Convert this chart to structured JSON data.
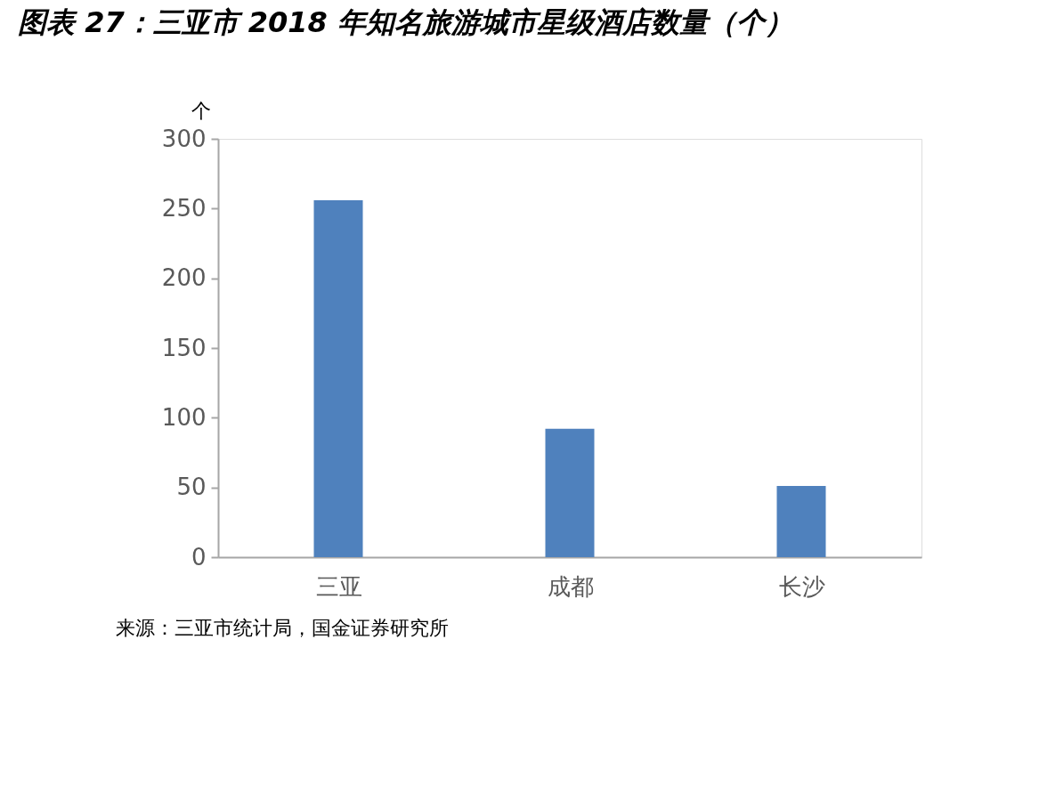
{
  "chart_data": {
    "type": "bar",
    "title": "图表 27：三亚市 2018 年知名旅游城市星级酒店数量（个）",
    "ylabel": "个",
    "categories": [
      "三亚",
      "成都",
      "长沙"
    ],
    "values": [
      256,
      92,
      51
    ],
    "color": "#4f81bd",
    "ylim": [
      0,
      300
    ],
    "yticks": [
      0,
      50,
      100,
      150,
      200,
      250,
      300
    ],
    "grid": false,
    "annotations": [
      "来源：三亚市统计局，国金证券研究所"
    ]
  }
}
